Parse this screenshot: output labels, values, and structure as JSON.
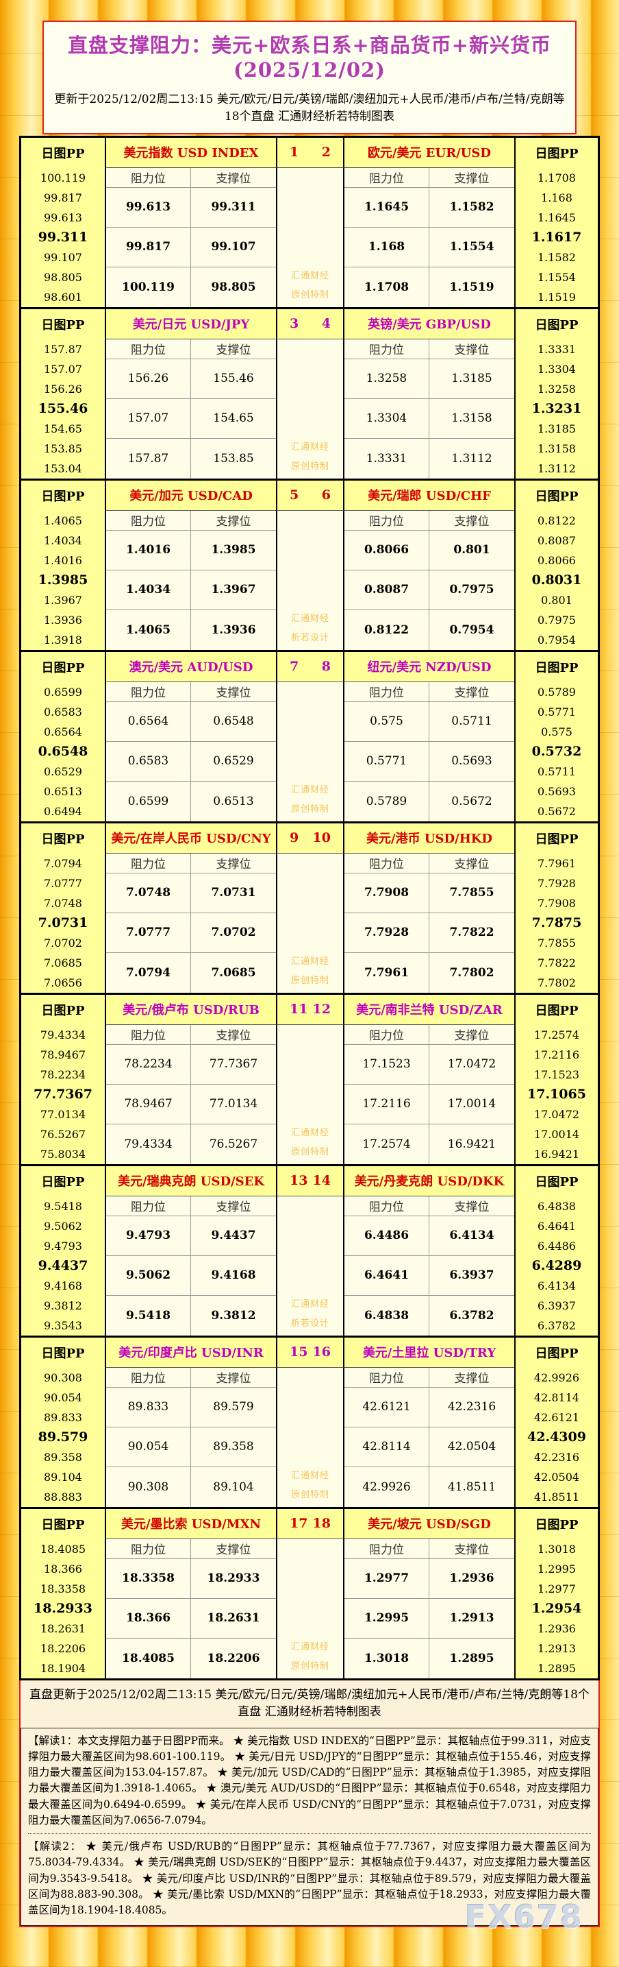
{
  "page": {
    "title": "直盘支撑阻力：美元+欧系日系+商品货币+新兴货币(2025/12/02)",
    "subtitle": "更新于2025/12/02周二13:15 美元/欧元/日元/英镑/瑞郎/澳纽加元+人民币/港币/卢布/兰特/克朗等18个直盘 汇通财经析若特制图表",
    "footer_line": "直盘更新于2025/12/02周二13:15 美元/欧元/日元/英镑/瑞郎/澳纽加元+人民币/港币/卢布/兰特/克朗等18个直盘 汇通财经析若特制图表",
    "center_watermark_line1": "汇通财经",
    "fx_watermark": "FX678",
    "analysis_1": "【解读1：本文支撑阻力基于日图PP而来。 ★ 美元指数 USD INDEX的“日图PP”显示：其枢轴点位于99.311，对应支撑阻力最大覆盖区间为98.601-100.119。 ★ 美元/日元 USD/JPY的“日图PP”显示：其枢轴点位于155.46，对应支撑阻力最大覆盖区间为153.04-157.87。 ★ 美元/加元 USD/CAD的“日图PP”显示：其枢轴点位于1.3985，对应支撑阻力最大覆盖区间为1.3918-1.4065。 ★ 澳元/美元 AUD/USD的“日图PP”显示：其枢轴点位于0.6548，对应支撑阻力最大覆盖区间为0.6494-0.6599。 ★ 美元/在岸人民币 USD/CNY的“日图PP”显示：其枢轴点位于7.0731，对应支撑阻力最大覆盖区间为7.0656-7.0794。",
    "analysis_2": "【解读2： ★ 美元/俄卢布 USD/RUB的“日图PP”显示：其枢轴点位于77.7367，对应支撑阻力最大覆盖区间为75.8034-79.4334。 ★ 美元/瑞典克朗 USD/SEK的“日图PP”显示：其枢轴点位于9.4437，对应支撑阻力最大覆盖区间为9.3543-9.5418。 ★ 美元/印度卢比 USD/INR的“日图PP”显示：其枢轴点位于89.579，对应支撑阻力最大覆盖区间为88.883-90.308。 ★ 美元/墨比索 USD/MXN的“日图PP”显示：其枢轴点位于18.2933，对应支撑阻力最大覆盖区间为18.1904-18.4085。"
  },
  "labels": {
    "pp": "日图PP",
    "resistance": "阻力位",
    "support": "支撑位"
  },
  "colors": {
    "red": "#D40000",
    "magenta": "#C000C0",
    "title": "#B23AB2",
    "watermark": "#F6C35C"
  },
  "chart_data": {
    "type": "table",
    "title": "直盘支撑阻力：美元+欧系日系+商品货币+新兴货币(2025/12/02)",
    "updated": "2025/12/02周二13:15",
    "columns": [
      "日图PP",
      "阻力位",
      "支撑位"
    ],
    "pivot_index": 3,
    "blocks": [
      {
        "nums": [
          "1",
          "2"
        ],
        "accent": "red",
        "watermark_line2": "原创特制",
        "left": {
          "name": "美元指数",
          "code": "USD INDEX",
          "pp": [
            "100.119",
            "99.817",
            "99.613",
            "99.311",
            "99.107",
            "98.805",
            "98.601"
          ],
          "rows": [
            [
              "99.613",
              "99.311"
            ],
            [
              "99.817",
              "99.107"
            ],
            [
              "100.119",
              "98.805"
            ]
          ]
        },
        "right": {
          "name": "欧元/美元",
          "code": "EUR/USD",
          "pp": [
            "1.1708",
            "1.168",
            "1.1645",
            "1.1617",
            "1.1582",
            "1.1554",
            "1.1519"
          ],
          "rows": [
            [
              "1.1645",
              "1.1582"
            ],
            [
              "1.168",
              "1.1554"
            ],
            [
              "1.1708",
              "1.1519"
            ]
          ]
        }
      },
      {
        "nums": [
          "3",
          "4"
        ],
        "accent": "magenta",
        "watermark_line2": "原创特制",
        "left": {
          "name": "美元/日元",
          "code": "USD/JPY",
          "pp": [
            "157.87",
            "157.07",
            "156.26",
            "155.46",
            "154.65",
            "153.85",
            "153.04"
          ],
          "rows": [
            [
              "156.26",
              "155.46"
            ],
            [
              "157.07",
              "154.65"
            ],
            [
              "157.87",
              "153.85"
            ]
          ]
        },
        "right": {
          "name": "英镑/美元",
          "code": "GBP/USD",
          "pp": [
            "1.3331",
            "1.3304",
            "1.3258",
            "1.3231",
            "1.3185",
            "1.3158",
            "1.3112"
          ],
          "rows": [
            [
              "1.3258",
              "1.3185"
            ],
            [
              "1.3304",
              "1.3158"
            ],
            [
              "1.3331",
              "1.3112"
            ]
          ]
        }
      },
      {
        "nums": [
          "5",
          "6"
        ],
        "accent": "red",
        "watermark_line2": "析若设计",
        "left": {
          "name": "美元/加元",
          "code": "USD/CAD",
          "pp": [
            "1.4065",
            "1.4034",
            "1.4016",
            "1.3985",
            "1.3967",
            "1.3936",
            "1.3918"
          ],
          "rows": [
            [
              "1.4016",
              "1.3985"
            ],
            [
              "1.4034",
              "1.3967"
            ],
            [
              "1.4065",
              "1.3936"
            ]
          ]
        },
        "right": {
          "name": "美元/瑞郎",
          "code": "USD/CHF",
          "pp": [
            "0.8122",
            "0.8087",
            "0.8066",
            "0.8031",
            "0.801",
            "0.7975",
            "0.7954"
          ],
          "rows": [
            [
              "0.8066",
              "0.801"
            ],
            [
              "0.8087",
              "0.7975"
            ],
            [
              "0.8122",
              "0.7954"
            ]
          ]
        }
      },
      {
        "nums": [
          "7",
          "8"
        ],
        "accent": "magenta",
        "watermark_line2": "原创特制",
        "left": {
          "name": "澳元/美元",
          "code": "AUD/USD",
          "pp": [
            "0.6599",
            "0.6583",
            "0.6564",
            "0.6548",
            "0.6529",
            "0.6513",
            "0.6494"
          ],
          "rows": [
            [
              "0.6564",
              "0.6548"
            ],
            [
              "0.6583",
              "0.6529"
            ],
            [
              "0.6599",
              "0.6513"
            ]
          ]
        },
        "right": {
          "name": "纽元/美元",
          "code": "NZD/USD",
          "pp": [
            "0.5789",
            "0.5771",
            "0.575",
            "0.5732",
            "0.5711",
            "0.5693",
            "0.5672"
          ],
          "rows": [
            [
              "0.575",
              "0.5711"
            ],
            [
              "0.5771",
              "0.5693"
            ],
            [
              "0.5789",
              "0.5672"
            ]
          ]
        }
      },
      {
        "nums": [
          "9",
          "10"
        ],
        "accent": "red",
        "watermark_line2": "原创特制",
        "left": {
          "name": "美元/在岸人民币",
          "code": "USD/CNY",
          "pp": [
            "7.0794",
            "7.0777",
            "7.0748",
            "7.0731",
            "7.0702",
            "7.0685",
            "7.0656"
          ],
          "rows": [
            [
              "7.0748",
              "7.0731"
            ],
            [
              "7.0777",
              "7.0702"
            ],
            [
              "7.0794",
              "7.0685"
            ]
          ]
        },
        "right": {
          "name": "美元/港币",
          "code": "USD/HKD",
          "pp": [
            "7.7961",
            "7.7928",
            "7.7908",
            "7.7875",
            "7.7855",
            "7.7822",
            "7.7802"
          ],
          "rows": [
            [
              "7.7908",
              "7.7855"
            ],
            [
              "7.7928",
              "7.7822"
            ],
            [
              "7.7961",
              "7.7802"
            ]
          ]
        }
      },
      {
        "nums": [
          "11",
          "12"
        ],
        "accent": "magenta",
        "watermark_line2": "原创特制",
        "left": {
          "name": "美元/俄卢布",
          "code": "USD/RUB",
          "pp": [
            "79.4334",
            "78.9467",
            "78.2234",
            "77.7367",
            "77.0134",
            "76.5267",
            "75.8034"
          ],
          "rows": [
            [
              "78.2234",
              "77.7367"
            ],
            [
              "78.9467",
              "77.0134"
            ],
            [
              "79.4334",
              "76.5267"
            ]
          ]
        },
        "right": {
          "name": "美元/南非兰特",
          "code": "USD/ZAR",
          "pp": [
            "17.2574",
            "17.2116",
            "17.1523",
            "17.1065",
            "17.0472",
            "17.0014",
            "16.9421"
          ],
          "rows": [
            [
              "17.1523",
              "17.0472"
            ],
            [
              "17.2116",
              "17.0014"
            ],
            [
              "17.2574",
              "16.9421"
            ]
          ]
        }
      },
      {
        "nums": [
          "13",
          "14"
        ],
        "accent": "red",
        "watermark_line2": "析若设计",
        "left": {
          "name": "美元/瑞典克朗",
          "code": "USD/SEK",
          "pp": [
            "9.5418",
            "9.5062",
            "9.4793",
            "9.4437",
            "9.4168",
            "9.3812",
            "9.3543"
          ],
          "rows": [
            [
              "9.4793",
              "9.4437"
            ],
            [
              "9.5062",
              "9.4168"
            ],
            [
              "9.5418",
              "9.3812"
            ]
          ]
        },
        "right": {
          "name": "美元/丹麦克朗",
          "code": "USD/DKK",
          "pp": [
            "6.4838",
            "6.4641",
            "6.4486",
            "6.4289",
            "6.4134",
            "6.3937",
            "6.3782"
          ],
          "rows": [
            [
              "6.4486",
              "6.4134"
            ],
            [
              "6.4641",
              "6.3937"
            ],
            [
              "6.4838",
              "6.3782"
            ]
          ]
        }
      },
      {
        "nums": [
          "15",
          "16"
        ],
        "accent": "magenta",
        "watermark_line2": "原创特制",
        "left": {
          "name": "美元/印度卢比",
          "code": "USD/INR",
          "pp": [
            "90.308",
            "90.054",
            "89.833",
            "89.579",
            "89.358",
            "89.104",
            "88.883"
          ],
          "rows": [
            [
              "89.833",
              "89.579"
            ],
            [
              "90.054",
              "89.358"
            ],
            [
              "90.308",
              "89.104"
            ]
          ]
        },
        "right": {
          "name": "美元/土里拉",
          "code": "USD/TRY",
          "pp": [
            "42.9926",
            "42.8114",
            "42.6121",
            "42.4309",
            "42.2316",
            "42.0504",
            "41.8511"
          ],
          "rows": [
            [
              "42.6121",
              "42.2316"
            ],
            [
              "42.8114",
              "42.0504"
            ],
            [
              "42.9926",
              "41.8511"
            ]
          ]
        }
      },
      {
        "nums": [
          "17",
          "18"
        ],
        "accent": "red",
        "watermark_line2": "原创特制",
        "left": {
          "name": "美元/墨比索",
          "code": "USD/MXN",
          "pp": [
            "18.4085",
            "18.366",
            "18.3358",
            "18.2933",
            "18.2631",
            "18.2206",
            "18.1904"
          ],
          "rows": [
            [
              "18.3358",
              "18.2933"
            ],
            [
              "18.366",
              "18.2631"
            ],
            [
              "18.4085",
              "18.2206"
            ]
          ]
        },
        "right": {
          "name": "美元/坡元",
          "code": "USD/SGD",
          "pp": [
            "1.3018",
            "1.2995",
            "1.2977",
            "1.2954",
            "1.2936",
            "1.2913",
            "1.2895"
          ],
          "rows": [
            [
              "1.2977",
              "1.2936"
            ],
            [
              "1.2995",
              "1.2913"
            ],
            [
              "1.3018",
              "1.2895"
            ]
          ]
        }
      }
    ]
  }
}
